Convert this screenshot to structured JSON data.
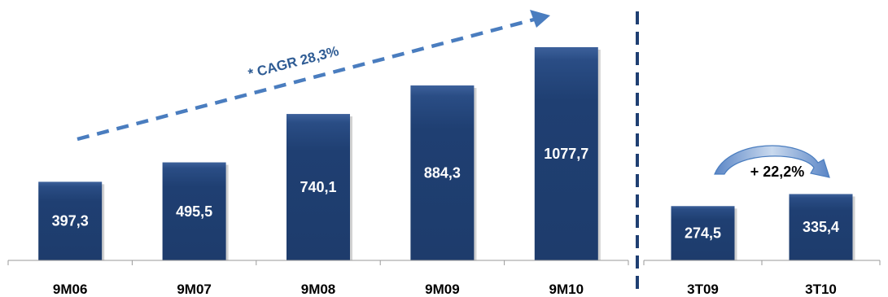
{
  "chart_data": [
    {
      "type": "bar",
      "categories": [
        "9M06",
        "9M07",
        "9M08",
        "9M09",
        "9M10"
      ],
      "values": [
        397.3,
        495.5,
        740.1,
        884.3,
        1077.7
      ],
      "value_labels": [
        "397,3",
        "495,5",
        "740,1",
        "884,3",
        "1077,7"
      ],
      "annotation": "* CAGR 28,3%",
      "title": "",
      "xlabel": "",
      "ylabel": "",
      "grid": false
    },
    {
      "type": "bar",
      "categories": [
        "3T09",
        "3T10"
      ],
      "values": [
        274.5,
        335.4
      ],
      "value_labels": [
        "274,5",
        "335,4"
      ],
      "annotation": "+ 22,2%",
      "title": "",
      "xlabel": "",
      "ylabel": "",
      "grid": false
    }
  ],
  "colors": {
    "bar": "#1f3f72",
    "bar_highlight": "#3d619b",
    "arrow": "#4a7dbf",
    "divider": "#1f3f72",
    "axis": "#9a9a9a"
  }
}
